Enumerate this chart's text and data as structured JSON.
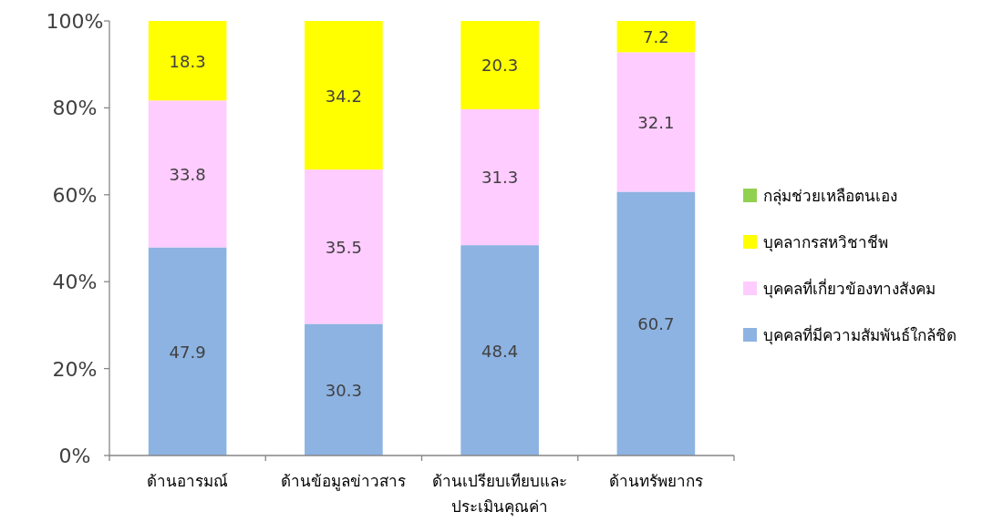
{
  "chart_data": {
    "type": "bar",
    "stacked": true,
    "categories": [
      "ด้านอารมณ์",
      "ด้านข้อมูลข่าวสาร",
      "ด้านเปรียบเทียบและ\nประเมินคุณค่า",
      "ด้านทรัพยากร"
    ],
    "series": [
      {
        "name": "บุคคลที่มีความสัมพันธ์ใกล้ชิด",
        "color": "#8db3e2",
        "values": [
          47.9,
          30.3,
          48.4,
          60.7
        ],
        "value_labels": [
          "47.9",
          "30.3",
          "48.4",
          "60.7"
        ]
      },
      {
        "name": "บุคคลที่เกี่ยวข้องทางสังคม",
        "color": "#ffccff",
        "values": [
          33.8,
          35.5,
          31.3,
          32.1
        ],
        "value_labels": [
          "33.8",
          "35.5",
          "31.3",
          "32.1"
        ]
      },
      {
        "name": "บุคลากรสหวิชาชีพ",
        "color": "#ffff00",
        "values": [
          18.3,
          34.2,
          20.3,
          7.2
        ],
        "value_labels": [
          "18.3",
          "34.2",
          "20.3",
          "7.2"
        ]
      },
      {
        "name": "กลุ่มช่วยเหลือตนเอง",
        "color": "#92d050",
        "values": [
          0,
          0,
          0,
          0
        ],
        "value_labels": [
          null,
          null,
          null,
          null
        ]
      }
    ],
    "ylim": [
      0,
      100
    ],
    "yticks": [
      {
        "value": 0,
        "label": "0%"
      },
      {
        "value": 20,
        "label": "20%"
      },
      {
        "value": 40,
        "label": "40%"
      },
      {
        "value": 60,
        "label": "60%"
      },
      {
        "value": 80,
        "label": "80%"
      },
      {
        "value": 100,
        "label": "100%"
      }
    ],
    "legend": "right"
  }
}
